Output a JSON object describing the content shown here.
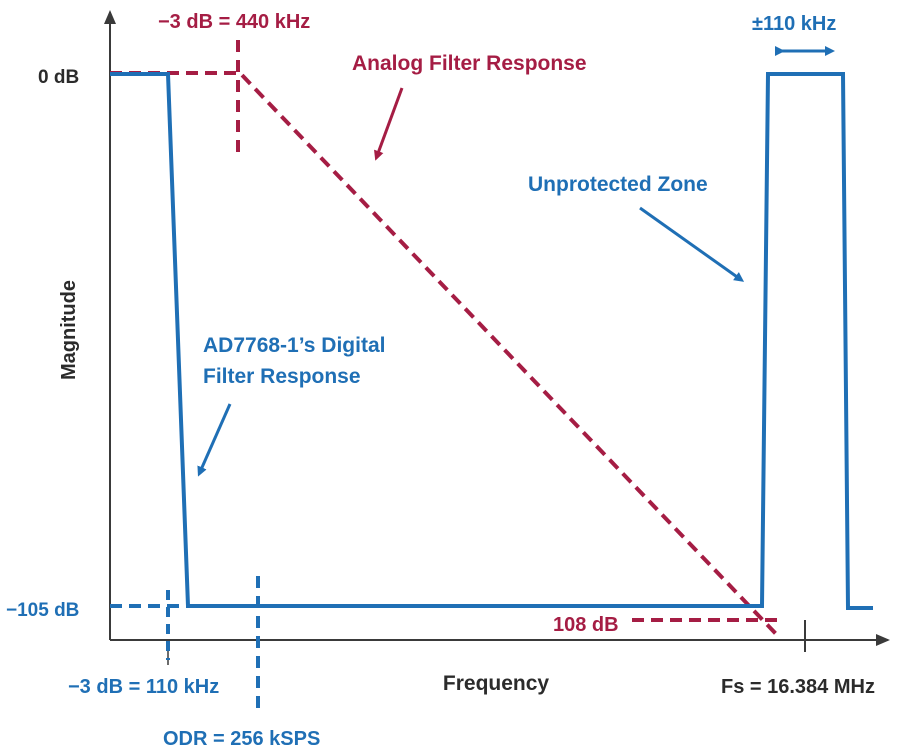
{
  "colors": {
    "digital": "#1f6fb5",
    "analog": "#a51d44",
    "axis": "#3a3a3a",
    "text_dark": "#2b2b2b"
  },
  "labels": {
    "y_axis": "Magnitude",
    "x_axis": "Frequency",
    "zero_db": "0 dB",
    "neg105_db": "−105 dB",
    "analog_3db": "−3 dB = 440 kHz",
    "analog_filter": "Analog Filter Response",
    "bandwidth": "±110 kHz",
    "unprotected_zone": "Unprotected Zone",
    "digital_filter_line1": "AD7768-1’s Digital",
    "digital_filter_line2": "Filter Response",
    "attenuation": "108 dB",
    "digital_3db": "−3 dB = 110 kHz",
    "odr": "ODR = 256 kSPS",
    "fs": "Fs = 16.384 MHz"
  }
}
